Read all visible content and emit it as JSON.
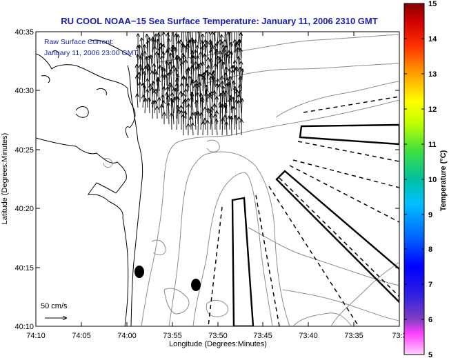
{
  "title": "RU COOL  NOAA−15  Sea Surface Temperature:  January 11, 2006 2310 GMT",
  "annotation": {
    "line1": "Raw Surface Current:",
    "line2": "January 11, 2006 23:00 GMT"
  },
  "scale_label": "50 cm/s",
  "x_axis": {
    "label": "Longitude (Degrees:Minutes)",
    "ticks": [
      "74:10",
      "74:05",
      "74:00",
      "73:55",
      "73:50",
      "73:45",
      "73:40",
      "73:35",
      "73:3"
    ]
  },
  "y_axis": {
    "label": "Latitude (Degrees:Minutes)",
    "ticks": [
      "40:35",
      "40:30",
      "40:25",
      "40:20",
      "40:15",
      "40:10"
    ]
  },
  "colorbar": {
    "label": "Temperature (°C)",
    "ticks": [
      "15",
      "14",
      "13",
      "12",
      "11",
      "10",
      "9",
      "8",
      "7",
      "6",
      "5"
    ],
    "colors": [
      "#8b0000",
      "#ff0000",
      "#ff8000",
      "#ffff00",
      "#80ff00",
      "#00c0a0",
      "#00c0ff",
      "#0060ff",
      "#0000ff",
      "#8040c0",
      "#ff40ff",
      "#ffc0ff"
    ]
  },
  "colors": {
    "title": "#1a1ab4",
    "lines": "#000000",
    "contours": "#888888"
  }
}
